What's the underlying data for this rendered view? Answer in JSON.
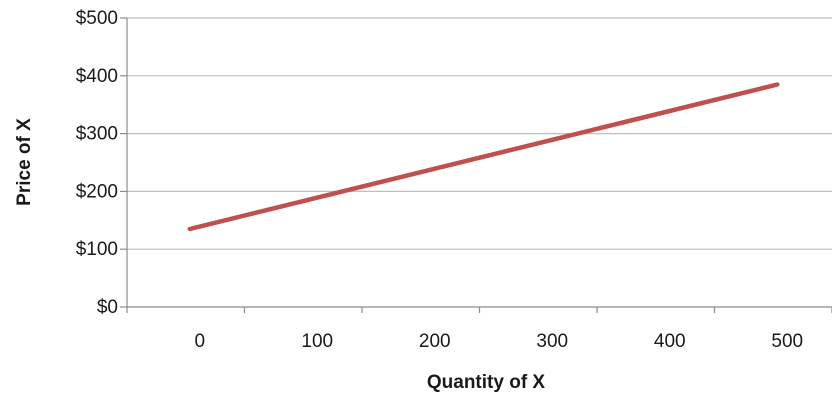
{
  "chart_data": {
    "type": "line",
    "title": "",
    "xlabel": "Quantity of X",
    "ylabel": "Price of X",
    "x_ticks": [
      "0",
      "100",
      "200",
      "300",
      "400",
      "500"
    ],
    "y_ticks": [
      "$0",
      "$100",
      "$200",
      "$300",
      "$400",
      "$500"
    ],
    "xlim": [
      0,
      500
    ],
    "ylim": [
      0,
      500
    ],
    "grid": "horizontal",
    "legend": "none",
    "series": [
      {
        "x": [
          0,
          500
        ],
        "y": [
          135,
          385
        ],
        "color": "#c0504d"
      }
    ],
    "colors": {
      "line": "#c0504d",
      "grid": "#bfbfbf",
      "axis": "#8c8c8c"
    }
  }
}
